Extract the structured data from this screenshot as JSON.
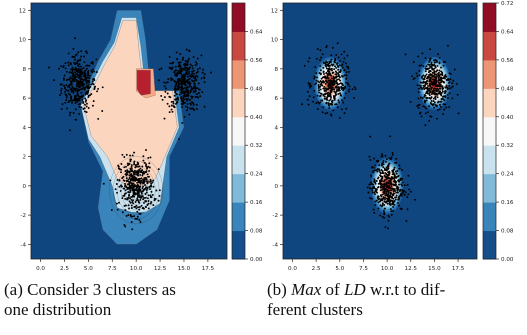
{
  "figure": {
    "caption_a": {
      "label": "(a)",
      "text": "Consider 3 clusters as\none distribution"
    },
    "caption_b": {
      "label": "(b)",
      "pre": "",
      "max_word": "Max",
      "mid": " of ",
      "ld_word": "LD",
      "post": " w.r.t to dif-\nferent clusters"
    }
  },
  "chart_data": [
    {
      "type": "heatmap",
      "panel": "a",
      "title": "",
      "xlabel": "",
      "ylabel": "",
      "xlim": [
        -1,
        19.5
      ],
      "ylim": [
        -5,
        12.5
      ],
      "xticks": [
        "0.0",
        "2.5",
        "5.0",
        "7.5",
        "10.0",
        "12.5",
        "15.0",
        "17.5"
      ],
      "xtick_values": [
        0,
        2.5,
        5,
        7.5,
        10,
        12.5,
        15,
        17.5
      ],
      "yticks": [
        "-4",
        "-2",
        "0",
        "2",
        "4",
        "6",
        "8",
        "10",
        "12"
      ],
      "ytick_values": [
        -4,
        -2,
        0,
        2,
        4,
        6,
        8,
        10,
        12
      ],
      "colorbar": {
        "ticks": [
          "0.00",
          "0.08",
          "0.16",
          "0.24",
          "0.32",
          "0.40",
          "0.48",
          "0.56",
          "0.64"
        ],
        "tick_values": [
          0,
          0.08,
          0.16,
          0.24,
          0.32,
          0.4,
          0.48,
          0.56,
          0.64
        ],
        "range": [
          0,
          0.72
        ],
        "colormap": "RdBu_r"
      },
      "clusters": [
        {
          "center": [
            4,
            7
          ],
          "std": 0.9,
          "points": 400
        },
        {
          "center": [
            15,
            7
          ],
          "std": 0.9,
          "points": 400
        },
        {
          "center": [
            10,
            0
          ],
          "std": 0.9,
          "points": 450
        }
      ],
      "regions": [
        {
          "level": 0.12,
          "polygon": [
            [
              8,
              12
            ],
            [
              10.5,
              12
            ],
            [
              11,
              10
            ],
            [
              11.5,
              6.5
            ],
            [
              14.5,
              6.5
            ],
            [
              15,
              4
            ],
            [
              13.5,
              2
            ],
            [
              13.5,
              -1
            ],
            [
              12.2,
              -3
            ],
            [
              10,
              -4
            ],
            [
              8,
              -4
            ],
            [
              6.5,
              -3
            ],
            [
              6,
              -1.5
            ],
            [
              6.5,
              1
            ],
            [
              5,
              3
            ],
            [
              4.2,
              5.5
            ],
            [
              5,
              7
            ],
            [
              6,
              8.5
            ],
            [
              7.3,
              10
            ],
            [
              8,
              12
            ]
          ]
        },
        {
          "level": 0.28,
          "polygon": [
            [
              8.5,
              11.5
            ],
            [
              10,
              11.5
            ],
            [
              10.5,
              9.5
            ],
            [
              11,
              6.5
            ],
            [
              14,
              6.5
            ],
            [
              14.5,
              4
            ],
            [
              13.2,
              2
            ],
            [
              12.5,
              -1.2
            ],
            [
              11,
              -1.8
            ],
            [
              9.5,
              -1.8
            ],
            [
              8,
              -1.5
            ],
            [
              7.5,
              0
            ],
            [
              6.2,
              2
            ],
            [
              5,
              3.2
            ],
            [
              4.2,
              5.5
            ],
            [
              5.2,
              6.8
            ],
            [
              6.5,
              8.5
            ],
            [
              7.7,
              9.8
            ],
            [
              8.5,
              11.5
            ]
          ]
        },
        {
          "level": 0.44,
          "polygon": [
            [
              8.6,
              11.3
            ],
            [
              10,
              11.3
            ],
            [
              10.3,
              9.3
            ],
            [
              10.8,
              6.5
            ],
            [
              13.8,
              6.5
            ],
            [
              14.3,
              4
            ],
            [
              13,
              2
            ],
            [
              12,
              0.5
            ],
            [
              11,
              0
            ],
            [
              9,
              0
            ],
            [
              8,
              0.5
            ],
            [
              7,
              2
            ],
            [
              5.3,
              3.4
            ],
            [
              4.5,
              5.5
            ],
            [
              5.4,
              6.6
            ],
            [
              6.7,
              8.3
            ],
            [
              7.8,
              9.6
            ],
            [
              8.6,
              11.3
            ]
          ]
        },
        {
          "level": 0.5,
          "polygon": [
            [
              10,
              8
            ],
            [
              11.8,
              8
            ],
            [
              12,
              6.2
            ],
            [
              11,
              6
            ],
            [
              10,
              6.5
            ]
          ]
        },
        {
          "level": 0.64,
          "polygon": [
            [
              10.1,
              7.9
            ],
            [
              11.5,
              7.9
            ],
            [
              11.5,
              6.3
            ],
            [
              10.5,
              6.2
            ],
            [
              10.1,
              6.6
            ]
          ]
        }
      ]
    },
    {
      "type": "heatmap",
      "panel": "b",
      "title": "",
      "xlabel": "",
      "ylabel": "",
      "xlim": [
        -1,
        19.5
      ],
      "ylim": [
        -5,
        12.5
      ],
      "xticks": [
        "0.0",
        "2.5",
        "5.0",
        "7.5",
        "10.0",
        "12.5",
        "15.0",
        "17.5"
      ],
      "xtick_values": [
        0,
        2.5,
        5,
        7.5,
        10,
        12.5,
        15,
        17.5
      ],
      "yticks": [
        "-4",
        "-2",
        "0",
        "2",
        "4",
        "6",
        "8",
        "10",
        "12"
      ],
      "ytick_values": [
        -4,
        -2,
        0,
        2,
        4,
        6,
        8,
        10,
        12
      ],
      "colorbar": {
        "ticks": [
          "0.00",
          "0.08",
          "0.16",
          "0.24",
          "0.32",
          "0.40",
          "0.48",
          "0.56",
          "0.64",
          "0.72"
        ],
        "tick_values": [
          0,
          0.08,
          0.16,
          0.24,
          0.32,
          0.4,
          0.48,
          0.56,
          0.64,
          0.72
        ],
        "range": [
          0,
          0.72
        ],
        "colormap": "RdBu_r"
      },
      "clusters": [
        {
          "center": [
            4,
            7
          ],
          "std": 0.9,
          "points": 400
        },
        {
          "center": [
            15,
            7
          ],
          "std": 0.9,
          "points": 400
        },
        {
          "center": [
            10,
            0
          ],
          "std": 0.9,
          "points": 450
        }
      ],
      "blobs": [
        {
          "center": [
            4,
            7
          ],
          "radius": [
            1.7,
            1.8
          ],
          "peak": 0.72
        },
        {
          "center": [
            15,
            7
          ],
          "radius": [
            1.7,
            1.8
          ],
          "peak": 0.72
        },
        {
          "center": [
            10,
            0
          ],
          "radius": [
            1.7,
            1.9
          ],
          "peak": 0.72
        }
      ]
    }
  ]
}
